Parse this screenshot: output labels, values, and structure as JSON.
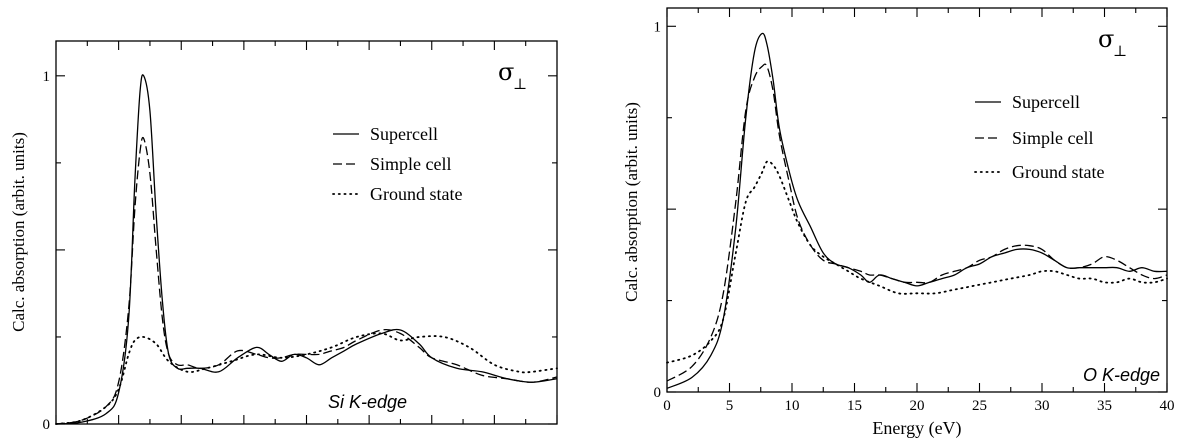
{
  "chart_data": [
    {
      "type": "line",
      "panel_label": "Si K-edge",
      "polarization_symbol": "σ",
      "polarization_subscript": "⊥",
      "ylabel": "Calc. absorption (arbit. units)",
      "xlabel": "",
      "xlim": [
        0,
        40
      ],
      "ylim": [
        0,
        1.1
      ],
      "x_ticks": [
        0,
        5,
        10,
        15,
        20,
        25,
        30,
        35,
        40
      ],
      "x_tick_labels": [],
      "y_ticks": [
        0,
        0.5,
        1
      ],
      "y_tick_labels": [
        "0",
        "",
        "1"
      ],
      "legend_position": "upper-right",
      "series": [
        {
          "name": "Supercell",
          "style": "solid",
          "x": [
            0,
            2,
            4,
            5,
            5.8,
            6.3,
            6.7,
            7.0,
            7.5,
            8.0,
            8.5,
            9.0,
            9.7,
            10.5,
            11.5,
            13,
            14.5,
            16,
            17,
            18,
            19,
            20,
            21,
            22,
            23,
            24,
            26,
            27.5,
            29,
            30,
            32,
            34,
            36,
            38,
            40
          ],
          "y": [
            0,
            0.005,
            0.03,
            0.09,
            0.3,
            0.7,
            0.95,
            1.0,
            0.9,
            0.6,
            0.35,
            0.2,
            0.16,
            0.16,
            0.16,
            0.15,
            0.19,
            0.22,
            0.2,
            0.18,
            0.2,
            0.19,
            0.17,
            0.19,
            0.21,
            0.23,
            0.26,
            0.27,
            0.23,
            0.19,
            0.16,
            0.15,
            0.13,
            0.12,
            0.13
          ]
        },
        {
          "name": "Simple cell",
          "style": "dashed",
          "x": [
            0,
            2,
            4,
            5,
            5.8,
            6.3,
            6.7,
            7.0,
            7.5,
            8.0,
            8.5,
            9.0,
            9.7,
            10.5,
            11.5,
            13,
            14.5,
            16,
            17,
            18,
            19,
            20,
            21,
            22,
            23,
            24,
            26,
            27.5,
            29,
            30,
            32,
            34,
            36,
            38,
            40
          ],
          "y": [
            0,
            0.01,
            0.05,
            0.12,
            0.33,
            0.62,
            0.78,
            0.82,
            0.72,
            0.5,
            0.3,
            0.2,
            0.17,
            0.17,
            0.16,
            0.17,
            0.21,
            0.2,
            0.19,
            0.19,
            0.2,
            0.2,
            0.2,
            0.21,
            0.22,
            0.24,
            0.27,
            0.26,
            0.22,
            0.19,
            0.17,
            0.14,
            0.13,
            0.12,
            0.135
          ]
        },
        {
          "name": "Ground state",
          "style": "dotted",
          "x": [
            0,
            2,
            4,
            5,
            5.8,
            6.3,
            7.0,
            8.0,
            9.0,
            10.5,
            12,
            14,
            16,
            18,
            20,
            22,
            24,
            26,
            27.5,
            29,
            31,
            33,
            35,
            37,
            38,
            40
          ],
          "y": [
            0,
            0.01,
            0.05,
            0.1,
            0.2,
            0.24,
            0.25,
            0.23,
            0.18,
            0.15,
            0.16,
            0.18,
            0.2,
            0.19,
            0.2,
            0.22,
            0.25,
            0.26,
            0.24,
            0.25,
            0.25,
            0.22,
            0.17,
            0.15,
            0.15,
            0.16
          ]
        }
      ]
    },
    {
      "type": "line",
      "panel_label": "O K-edge",
      "polarization_symbol": "σ",
      "polarization_subscript": "⊥",
      "ylabel": "Calc. absorption (arbit. units)",
      "xlabel": "Energy (eV)",
      "xlim": [
        0,
        40
      ],
      "ylim": [
        0,
        1.05
      ],
      "x_ticks": [
        0,
        5,
        10,
        15,
        20,
        25,
        30,
        35,
        40
      ],
      "x_tick_labels": [
        "0",
        "5",
        "10",
        "15",
        "20",
        "25",
        "30",
        "35",
        "40"
      ],
      "y_ticks": [
        0,
        0.5,
        1
      ],
      "y_tick_labels": [
        "0",
        "",
        "1"
      ],
      "legend_position": "upper-right",
      "series": [
        {
          "name": "Supercell",
          "style": "solid",
          "x": [
            0,
            2,
            3.5,
            4.5,
            5.5,
            6.3,
            7.0,
            7.6,
            8.0,
            8.5,
            9.0,
            9.8,
            10.5,
            11.5,
            12.5,
            13.5,
            14.5,
            15.5,
            16.2,
            17,
            18,
            19,
            20,
            21,
            22,
            23,
            24,
            25,
            26,
            27,
            28,
            29,
            30,
            31,
            32,
            33,
            34,
            35,
            36,
            37,
            38,
            39,
            40
          ],
          "y": [
            0.01,
            0.04,
            0.1,
            0.2,
            0.45,
            0.75,
            0.93,
            0.98,
            0.95,
            0.85,
            0.72,
            0.6,
            0.52,
            0.45,
            0.38,
            0.35,
            0.34,
            0.32,
            0.3,
            0.32,
            0.31,
            0.3,
            0.29,
            0.3,
            0.31,
            0.32,
            0.34,
            0.35,
            0.37,
            0.38,
            0.39,
            0.39,
            0.38,
            0.36,
            0.34,
            0.34,
            0.34,
            0.34,
            0.34,
            0.33,
            0.34,
            0.33,
            0.33
          ]
        },
        {
          "name": "Simple cell",
          "style": "dashed",
          "x": [
            0,
            2,
            3.5,
            4.5,
            5.5,
            6.3,
            7.0,
            7.6,
            8.0,
            8.5,
            9.0,
            9.8,
            10.5,
            11.5,
            12.5,
            13.5,
            14.5,
            15.5,
            16.2,
            17,
            18,
            19,
            20,
            21,
            22,
            23,
            24,
            25,
            26,
            27,
            28,
            29,
            30,
            31,
            32,
            33,
            34,
            35,
            36,
            37,
            38,
            39,
            40
          ],
          "y": [
            0.03,
            0.07,
            0.15,
            0.27,
            0.52,
            0.77,
            0.86,
            0.89,
            0.89,
            0.82,
            0.7,
            0.57,
            0.47,
            0.4,
            0.36,
            0.35,
            0.34,
            0.33,
            0.32,
            0.32,
            0.31,
            0.3,
            0.3,
            0.3,
            0.32,
            0.33,
            0.34,
            0.36,
            0.37,
            0.39,
            0.4,
            0.4,
            0.39,
            0.36,
            0.34,
            0.34,
            0.35,
            0.37,
            0.36,
            0.34,
            0.32,
            0.31,
            0.32
          ]
        },
        {
          "name": "Ground state",
          "style": "dotted",
          "x": [
            0,
            2,
            3.5,
            4.5,
            5.5,
            6.3,
            7.0,
            7.6,
            8.0,
            8.5,
            9.0,
            9.8,
            10.5,
            11.5,
            12.5,
            13.5,
            14.5,
            15.5,
            17,
            18.5,
            20,
            21.5,
            23,
            24.5,
            26,
            27.5,
            29,
            30,
            31,
            32,
            33,
            34,
            35,
            36,
            37,
            38,
            39,
            40
          ],
          "y": [
            0.08,
            0.1,
            0.14,
            0.2,
            0.38,
            0.52,
            0.56,
            0.6,
            0.63,
            0.62,
            0.59,
            0.52,
            0.46,
            0.4,
            0.37,
            0.35,
            0.33,
            0.31,
            0.29,
            0.27,
            0.27,
            0.27,
            0.28,
            0.29,
            0.3,
            0.31,
            0.32,
            0.33,
            0.33,
            0.32,
            0.31,
            0.31,
            0.3,
            0.3,
            0.31,
            0.3,
            0.3,
            0.31
          ]
        }
      ]
    }
  ]
}
